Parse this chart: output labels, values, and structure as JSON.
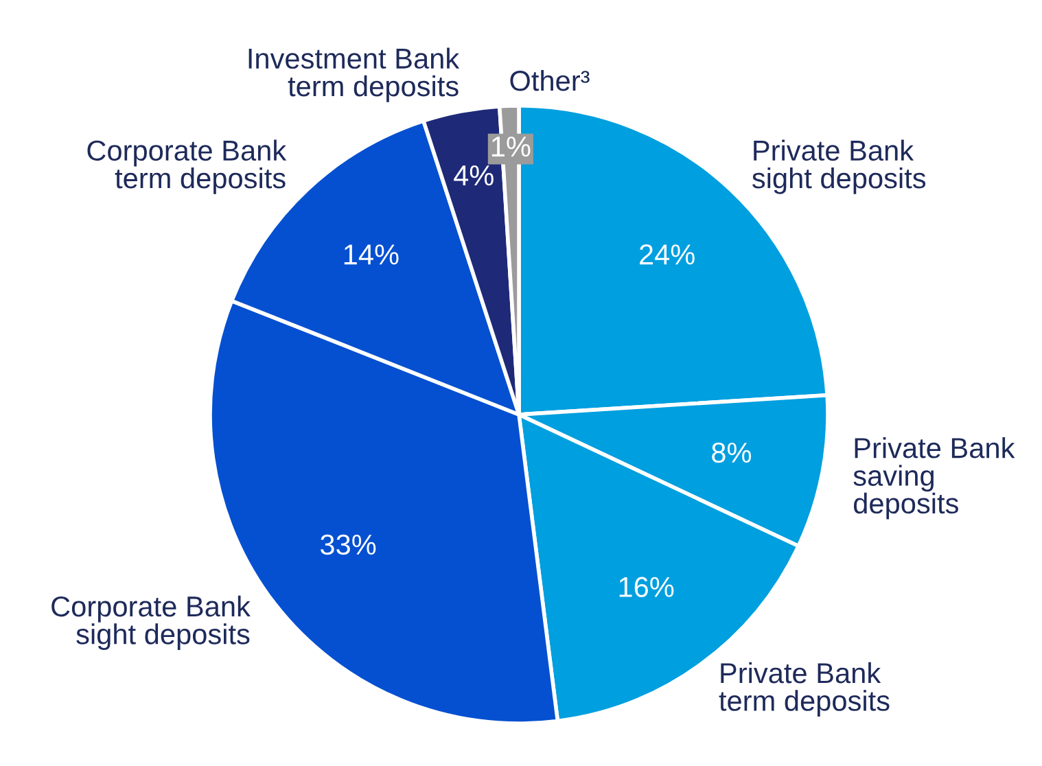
{
  "chart_data": {
    "type": "pie",
    "categories": [
      "Private Bank\nsight deposits",
      "Private Bank\nsaving\ndeposits",
      "Private Bank\nterm deposits",
      "Corporate Bank\nsight deposits",
      "Corporate Bank\nterm deposits",
      "Investment Bank\nterm deposits",
      "Other³"
    ],
    "values": [
      24,
      8,
      16,
      33,
      14,
      4,
      1
    ],
    "value_labels": [
      "24%",
      "8%",
      "16%",
      "33%",
      "14%",
      "4%",
      "1%"
    ],
    "colors": [
      "#009fdf",
      "#009fdf",
      "#009fdf",
      "#0550d1",
      "#0550d1",
      "#1e2a78",
      "#9b9b9b"
    ],
    "legend": false
  }
}
